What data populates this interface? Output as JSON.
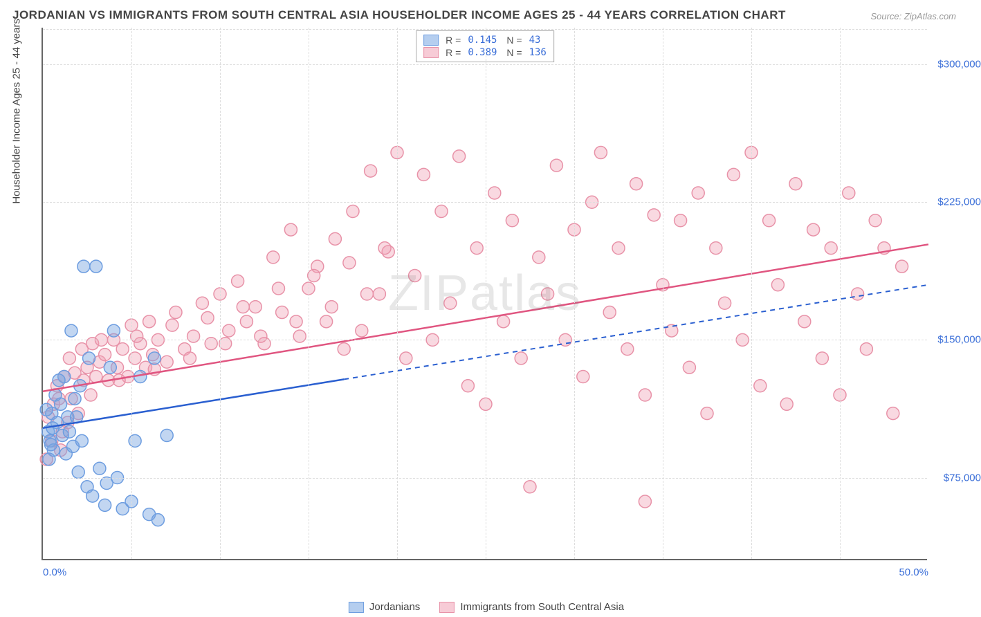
{
  "title": "JORDANIAN VS IMMIGRANTS FROM SOUTH CENTRAL ASIA HOUSEHOLDER INCOME AGES 25 - 44 YEARS CORRELATION CHART",
  "source": "Source: ZipAtlas.com",
  "y_axis_label": "Householder Income Ages 25 - 44 years",
  "watermark": "ZIPatlas",
  "chart": {
    "type": "scatter",
    "xlim": [
      0,
      50
    ],
    "ylim": [
      30000,
      320000
    ],
    "x_ticks": [
      0,
      50
    ],
    "x_tick_labels": [
      "0.0%",
      "50.0%"
    ],
    "y_ticks": [
      75000,
      150000,
      225000,
      300000
    ],
    "y_tick_labels": [
      "$75,000",
      "$150,000",
      "$225,000",
      "$300,000"
    ],
    "grid_v_positions": [
      5,
      10,
      15,
      20,
      25,
      30,
      35,
      40,
      45
    ],
    "background_color": "#ffffff",
    "grid_color": "#dddddd",
    "axis_color": "#666666",
    "marker_radius": 9,
    "marker_stroke_width": 1.5,
    "trend_line_width": 2.5
  },
  "series": [
    {
      "id": "jordanians",
      "label": "Jordanians",
      "color_fill": "rgba(120,165,225,0.45)",
      "color_stroke": "#6d9de0",
      "line_color": "#2a5fd0",
      "R": "0.145",
      "N": "43",
      "trend": {
        "x1": 0,
        "y1": 102000,
        "x2": 50,
        "y2": 180000,
        "solid_until_x": 17
      },
      "points": [
        [
          0.3,
          100000
        ],
        [
          0.4,
          95000
        ],
        [
          0.5,
          110000
        ],
        [
          0.6,
          90000
        ],
        [
          0.7,
          120000
        ],
        [
          0.8,
          105000
        ],
        [
          1.0,
          115000
        ],
        [
          1.1,
          98000
        ],
        [
          1.2,
          130000
        ],
        [
          1.3,
          88000
        ],
        [
          1.4,
          108000
        ],
        [
          1.5,
          100000
        ],
        [
          1.6,
          155000
        ],
        [
          1.7,
          92000
        ],
        [
          1.8,
          118000
        ],
        [
          2.0,
          78000
        ],
        [
          2.1,
          125000
        ],
        [
          2.2,
          95000
        ],
        [
          2.3,
          190000
        ],
        [
          2.5,
          70000
        ],
        [
          2.6,
          140000
        ],
        [
          2.8,
          65000
        ],
        [
          3.0,
          190000
        ],
        [
          3.2,
          80000
        ],
        [
          3.5,
          60000
        ],
        [
          3.6,
          72000
        ],
        [
          3.8,
          135000
        ],
        [
          4.0,
          155000
        ],
        [
          4.2,
          75000
        ],
        [
          4.5,
          58000
        ],
        [
          5.0,
          62000
        ],
        [
          5.2,
          95000
        ],
        [
          5.5,
          130000
        ],
        [
          6.0,
          55000
        ],
        [
          6.3,
          140000
        ],
        [
          6.5,
          52000
        ],
        [
          7.0,
          98000
        ],
        [
          0.9,
          128000
        ],
        [
          1.9,
          108000
        ],
        [
          0.2,
          112000
        ],
        [
          0.35,
          85000
        ],
        [
          0.45,
          93000
        ],
        [
          0.55,
          102000
        ]
      ]
    },
    {
      "id": "south_central_asia",
      "label": "Immigrants from South Central Asia",
      "color_fill": "rgba(240,160,180,0.40)",
      "color_stroke": "#e892a8",
      "line_color": "#e05580",
      "R": "0.389",
      "N": "136",
      "trend": {
        "x1": 0,
        "y1": 122000,
        "x2": 50,
        "y2": 202000,
        "solid_until_x": 50
      },
      "points": [
        [
          0.2,
          85000
        ],
        [
          0.3,
          108000
        ],
        [
          0.5,
          95000
        ],
        [
          0.6,
          115000
        ],
        [
          0.8,
          125000
        ],
        [
          1.0,
          90000
        ],
        [
          1.2,
          130000
        ],
        [
          1.4,
          105000
        ],
        [
          1.5,
          140000
        ],
        [
          1.6,
          118000
        ],
        [
          1.8,
          132000
        ],
        [
          2.0,
          110000
        ],
        [
          2.2,
          145000
        ],
        [
          2.3,
          128000
        ],
        [
          2.5,
          135000
        ],
        [
          2.7,
          120000
        ],
        [
          2.8,
          148000
        ],
        [
          3.0,
          130000
        ],
        [
          3.2,
          138000
        ],
        [
          3.5,
          142000
        ],
        [
          3.7,
          128000
        ],
        [
          4.0,
          150000
        ],
        [
          4.2,
          135000
        ],
        [
          4.5,
          145000
        ],
        [
          4.8,
          130000
        ],
        [
          5.0,
          158000
        ],
        [
          5.2,
          140000
        ],
        [
          5.5,
          148000
        ],
        [
          5.8,
          135000
        ],
        [
          6.0,
          160000
        ],
        [
          6.2,
          142000
        ],
        [
          6.5,
          150000
        ],
        [
          7.0,
          138000
        ],
        [
          7.5,
          165000
        ],
        [
          8.0,
          145000
        ],
        [
          8.5,
          152000
        ],
        [
          9.0,
          170000
        ],
        [
          9.5,
          148000
        ],
        [
          10.0,
          175000
        ],
        [
          10.5,
          155000
        ],
        [
          11.0,
          182000
        ],
        [
          11.5,
          160000
        ],
        [
          12.0,
          168000
        ],
        [
          12.5,
          148000
        ],
        [
          13.0,
          195000
        ],
        [
          13.5,
          165000
        ],
        [
          14.0,
          210000
        ],
        [
          14.5,
          152000
        ],
        [
          15.0,
          178000
        ],
        [
          15.5,
          190000
        ],
        [
          16.0,
          160000
        ],
        [
          16.5,
          205000
        ],
        [
          17.0,
          145000
        ],
        [
          17.5,
          220000
        ],
        [
          18.0,
          155000
        ],
        [
          18.5,
          242000
        ],
        [
          19.0,
          175000
        ],
        [
          19.5,
          198000
        ],
        [
          20.0,
          252000
        ],
        [
          20.5,
          140000
        ],
        [
          21.0,
          185000
        ],
        [
          21.5,
          240000
        ],
        [
          22.0,
          150000
        ],
        [
          22.5,
          220000
        ],
        [
          23.0,
          170000
        ],
        [
          23.5,
          250000
        ],
        [
          24.0,
          125000
        ],
        [
          24.5,
          200000
        ],
        [
          25.0,
          115000
        ],
        [
          25.5,
          230000
        ],
        [
          26.0,
          160000
        ],
        [
          26.5,
          215000
        ],
        [
          27.0,
          140000
        ],
        [
          27.5,
          70000
        ],
        [
          28.0,
          195000
        ],
        [
          28.5,
          175000
        ],
        [
          29.0,
          245000
        ],
        [
          29.5,
          150000
        ],
        [
          30.0,
          210000
        ],
        [
          30.5,
          130000
        ],
        [
          31.0,
          225000
        ],
        [
          31.5,
          252000
        ],
        [
          32.0,
          165000
        ],
        [
          32.5,
          200000
        ],
        [
          33.0,
          145000
        ],
        [
          33.5,
          235000
        ],
        [
          34.0,
          120000
        ],
        [
          34.5,
          218000
        ],
        [
          34.0,
          62000
        ],
        [
          35.0,
          180000
        ],
        [
          35.5,
          155000
        ],
        [
          36.0,
          215000
        ],
        [
          36.5,
          135000
        ],
        [
          37.0,
          230000
        ],
        [
          37.5,
          110000
        ],
        [
          38.0,
          200000
        ],
        [
          38.5,
          170000
        ],
        [
          39.0,
          240000
        ],
        [
          39.5,
          150000
        ],
        [
          40.0,
          252000
        ],
        [
          40.5,
          125000
        ],
        [
          41.0,
          215000
        ],
        [
          41.5,
          180000
        ],
        [
          42.0,
          115000
        ],
        [
          42.5,
          235000
        ],
        [
          43.0,
          160000
        ],
        [
          43.5,
          210000
        ],
        [
          44.0,
          140000
        ],
        [
          44.5,
          200000
        ],
        [
          45.0,
          120000
        ],
        [
          45.5,
          230000
        ],
        [
          46.0,
          175000
        ],
        [
          46.5,
          145000
        ],
        [
          47.0,
          215000
        ],
        [
          47.5,
          200000
        ],
        [
          48.0,
          110000
        ],
        [
          48.5,
          190000
        ],
        [
          3.3,
          150000
        ],
        [
          4.3,
          128000
        ],
        [
          5.3,
          152000
        ],
        [
          6.3,
          134000
        ],
        [
          7.3,
          158000
        ],
        [
          8.3,
          140000
        ],
        [
          9.3,
          162000
        ],
        [
          10.3,
          148000
        ],
        [
          11.3,
          168000
        ],
        [
          12.3,
          152000
        ],
        [
          13.3,
          178000
        ],
        [
          14.3,
          160000
        ],
        [
          15.3,
          185000
        ],
        [
          16.3,
          168000
        ],
        [
          17.3,
          192000
        ],
        [
          18.3,
          175000
        ],
        [
          19.3,
          200000
        ],
        [
          1.1,
          100000
        ],
        [
          0.9,
          118000
        ]
      ]
    }
  ],
  "legend_bottom": [
    {
      "label": "Jordanians",
      "fill": "rgba(120,165,225,0.55)",
      "stroke": "#6d9de0"
    },
    {
      "label": "Immigrants from South Central Asia",
      "fill": "rgba(240,160,180,0.55)",
      "stroke": "#e892a8"
    }
  ]
}
